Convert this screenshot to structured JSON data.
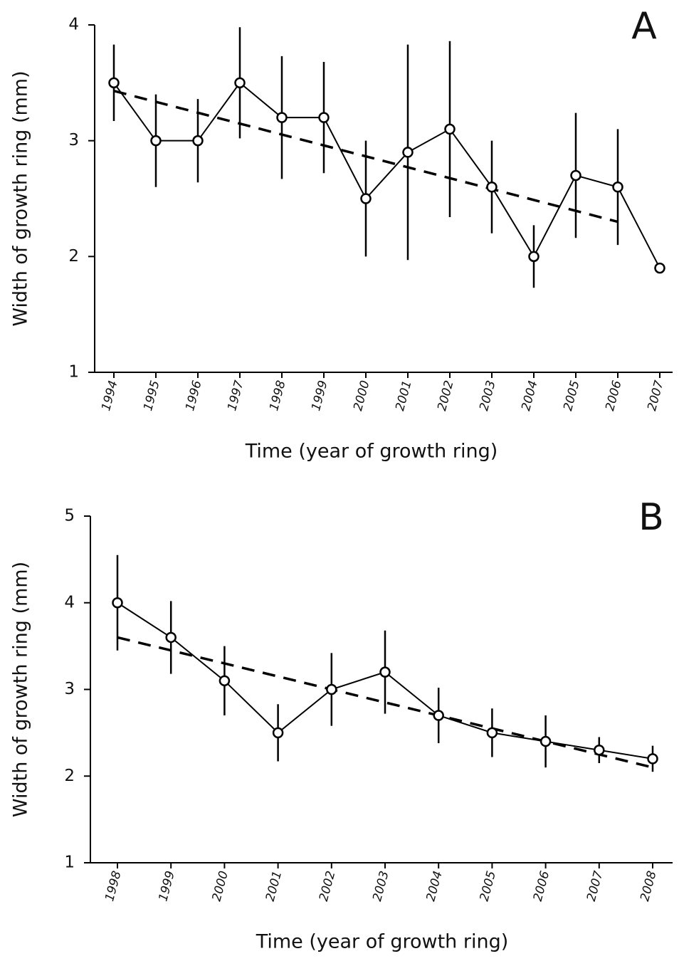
{
  "chart_data": [
    {
      "type": "line",
      "label": "A",
      "x_label": "Time (year of growth ring)",
      "y_label": "Width of growth ring (mm)",
      "categories": [
        "1994",
        "1995",
        "1996",
        "1997",
        "1998",
        "1999",
        "2000",
        "2001",
        "2002",
        "2003",
        "2004",
        "2005",
        "2006",
        "2007"
      ],
      "values": [
        3.5,
        3.0,
        3.0,
        3.5,
        3.2,
        3.2,
        2.5,
        2.9,
        3.1,
        2.6,
        2.0,
        2.7,
        2.6,
        1.9
      ],
      "errors": [
        0.33,
        0.4,
        0.36,
        0.48,
        0.53,
        0.48,
        0.5,
        0.93,
        0.76,
        0.4,
        0.27,
        0.54,
        0.5,
        0
      ],
      "trend": {
        "categories": [
          "1994",
          "2006"
        ],
        "values": [
          3.43,
          2.3
        ]
      },
      "color": "#000000",
      "ylim": [
        1,
        4
      ],
      "yticks": [
        1,
        2,
        3,
        4
      ]
    },
    {
      "type": "line",
      "label": "B",
      "x_label": "Time (year of growth ring)",
      "y_label": "Width of growth ring (mm)",
      "categories": [
        "1998",
        "1999",
        "2000",
        "2001",
        "2002",
        "2003",
        "2004",
        "2005",
        "2006",
        "2007",
        "2008"
      ],
      "values": [
        4.0,
        3.6,
        3.1,
        2.5,
        3.0,
        3.2,
        2.7,
        2.5,
        2.4,
        2.3,
        2.2
      ],
      "errors": [
        0.55,
        0.42,
        0.4,
        0.33,
        0.42,
        0.48,
        0.32,
        0.28,
        0.3,
        0.15,
        0.15
      ],
      "trend": {
        "categories": [
          "1998",
          "2008"
        ],
        "values": [
          3.6,
          2.1
        ]
      },
      "color": "#000000",
      "ylim": [
        1,
        5
      ],
      "yticks": [
        1,
        2,
        3,
        4,
        5
      ]
    }
  ]
}
